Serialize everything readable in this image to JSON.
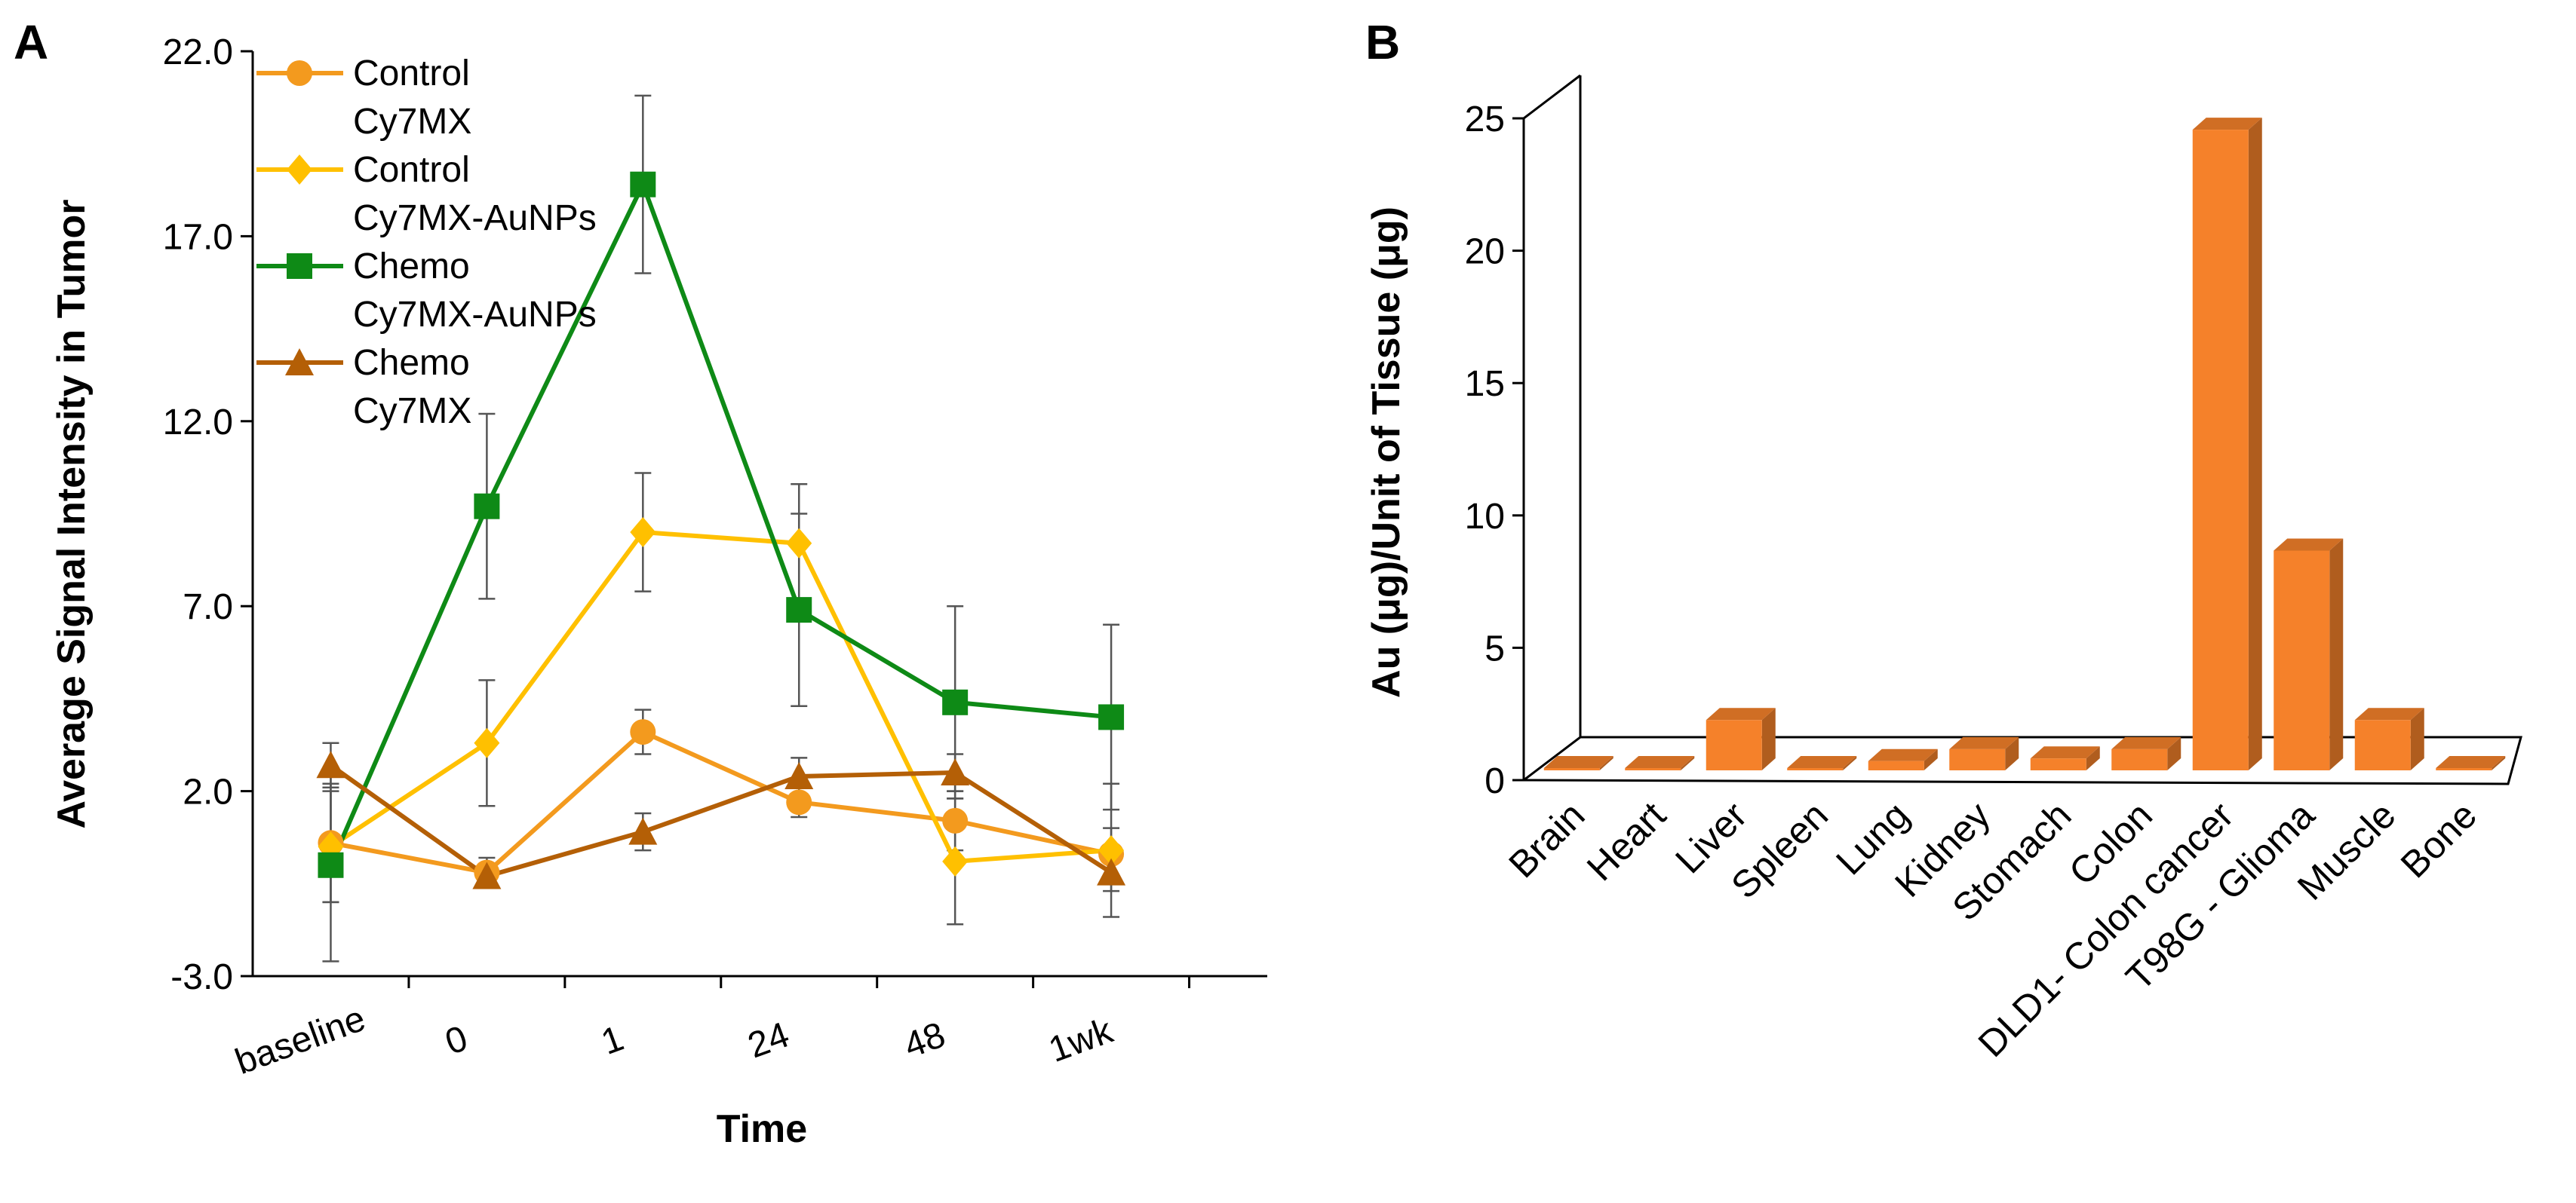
{
  "chart_data": [
    {
      "type": "line",
      "panel_label": "A",
      "xlabel": "Time",
      "ylabel": "Average Signal Intensity in Tumor",
      "categories": [
        "baseline",
        "0",
        "1",
        "24",
        "48",
        "1wk"
      ],
      "ylim": [
        -3.0,
        22.0
      ],
      "yticks": [
        "-3.0",
        "2.0",
        "7.0",
        "12.0",
        "17.0",
        "22.0"
      ],
      "legend_position": "top-left",
      "series": [
        {
          "name": "Control Cy7MX",
          "legend_line1": "Control",
          "legend_line2": "Cy7MX",
          "color": "#f39a1e",
          "marker": "circle",
          "values": [
            0.6,
            -0.2,
            3.6,
            1.7,
            1.2,
            0.3
          ],
          "errors": [
            1.6,
            0.4,
            0.6,
            0.4,
            0.8,
            0.7
          ]
        },
        {
          "name": "Control Cy7MX-AuNPs",
          "legend_line1": "Control",
          "legend_line2": "Cy7MX-AuNPs",
          "color": "#ffc000",
          "marker": "diamond",
          "values": [
            0.5,
            3.3,
            9.0,
            8.7,
            0.1,
            0.4
          ],
          "errors": [
            1.5,
            1.7,
            1.6,
            1.6,
            1.7,
            1.8
          ]
        },
        {
          "name": "Chemo Cy7MX-AuNPs",
          "legend_line1": "Chemo",
          "legend_line2": "Cy7MX-AuNPs",
          "color": "#0e8a16",
          "marker": "square",
          "values": [
            0.0,
            9.7,
            18.4,
            6.9,
            4.4,
            4.0
          ],
          "errors": [
            2.6,
            2.5,
            2.4,
            2.6,
            2.6,
            2.5
          ]
        },
        {
          "name": "Chemo Cy7MX",
          "legend_line1": "Chemo",
          "legend_line2": "Cy7MX",
          "color": "#b45f06",
          "marker": "triangle",
          "values": [
            2.7,
            -0.3,
            0.9,
            2.4,
            2.5,
            -0.2
          ],
          "errors": [
            0.6,
            0.3,
            0.5,
            0.5,
            0.5,
            0.5
          ]
        }
      ]
    },
    {
      "type": "bar",
      "style": "3d",
      "panel_label": "B",
      "xlabel": "",
      "ylabel": "Au (μg)/Unit of Tissue (μg)",
      "categories": [
        "Brain",
        "Heart",
        "Liver",
        "Spleen",
        "Lung",
        "Kidney",
        "Stomach",
        "Colon",
        "DLD1- Colon cancer",
        "T98G - Glioma",
        "Muscle",
        "Bone"
      ],
      "values": [
        0.05,
        0.03,
        1.9,
        0.03,
        0.35,
        0.8,
        0.45,
        0.8,
        24.2,
        8.3,
        1.9,
        0.05
      ],
      "ylim": [
        0,
        25
      ],
      "yticks": [
        "0",
        "5",
        "10",
        "15",
        "20",
        "25"
      ],
      "color": "#f5812a"
    }
  ]
}
